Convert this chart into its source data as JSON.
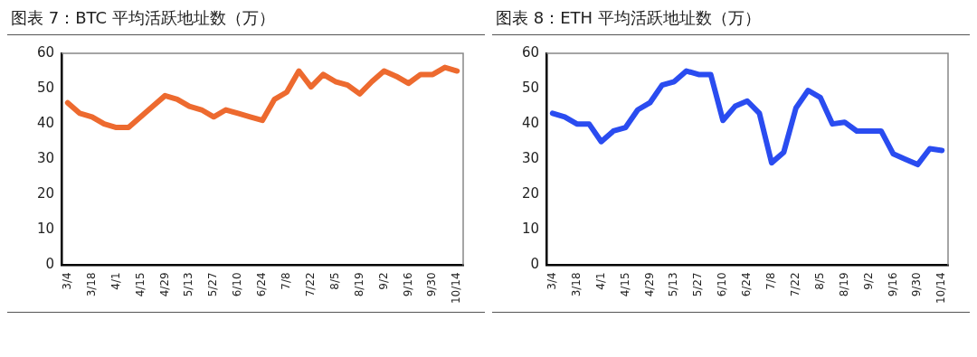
{
  "chart_data": [
    {
      "type": "line",
      "title": "图表 7：BTC 平均活跃地址数（万）",
      "categories": [
        "3/4",
        null,
        "3/18",
        null,
        "4/1",
        null,
        "4/15",
        null,
        "4/29",
        null,
        "5/13",
        null,
        "5/27",
        null,
        "6/10",
        null,
        "6/24",
        null,
        "7/8",
        null,
        "7/22",
        null,
        "8/5",
        null,
        "8/19",
        null,
        "9/2",
        null,
        "9/16",
        null,
        "9/30",
        null,
        "10/14"
      ],
      "series": [
        {
          "color": "#ed6a2f",
          "values": [
            46,
            43,
            42,
            40,
            39,
            39,
            42,
            45,
            48,
            47,
            45,
            44,
            42,
            44,
            43,
            42,
            41,
            47,
            49,
            55,
            50.5,
            54,
            52,
            51,
            48.5,
            52,
            55,
            53.5,
            51.5,
            54,
            54,
            56,
            55
          ]
        }
      ],
      "ylim": [
        0,
        60
      ],
      "yticks": [
        0,
        10,
        20,
        30,
        40,
        50,
        60
      ],
      "grid": false,
      "legend": false,
      "marker": "none"
    },
    {
      "type": "line",
      "title": "图表 8：ETH 平均活跃地址数（万）",
      "categories": [
        "3/4",
        null,
        "3/18",
        null,
        "4/1",
        null,
        "4/15",
        null,
        "4/29",
        null,
        "5/13",
        null,
        "5/27",
        null,
        "6/10",
        null,
        "6/24",
        null,
        "7/8",
        null,
        "7/22",
        null,
        "8/5",
        null,
        "8/19",
        null,
        "9/2",
        null,
        "9/16",
        null,
        "9/30",
        null,
        "10/14"
      ],
      "series": [
        {
          "color": "#2a4cf0",
          "values": [
            43,
            42,
            40,
            40,
            35,
            38,
            39,
            44,
            46,
            51,
            52,
            55,
            54,
            54,
            41,
            45,
            46.5,
            43,
            29,
            32,
            44.5,
            49.5,
            47.5,
            40,
            40.5,
            38,
            38,
            38,
            31.5,
            30,
            28.5,
            33,
            32.5
          ]
        }
      ],
      "ylim": [
        0,
        60
      ],
      "yticks": [
        0,
        10,
        20,
        30,
        40,
        50,
        60
      ],
      "grid": false,
      "legend": false,
      "marker": "none"
    }
  ]
}
